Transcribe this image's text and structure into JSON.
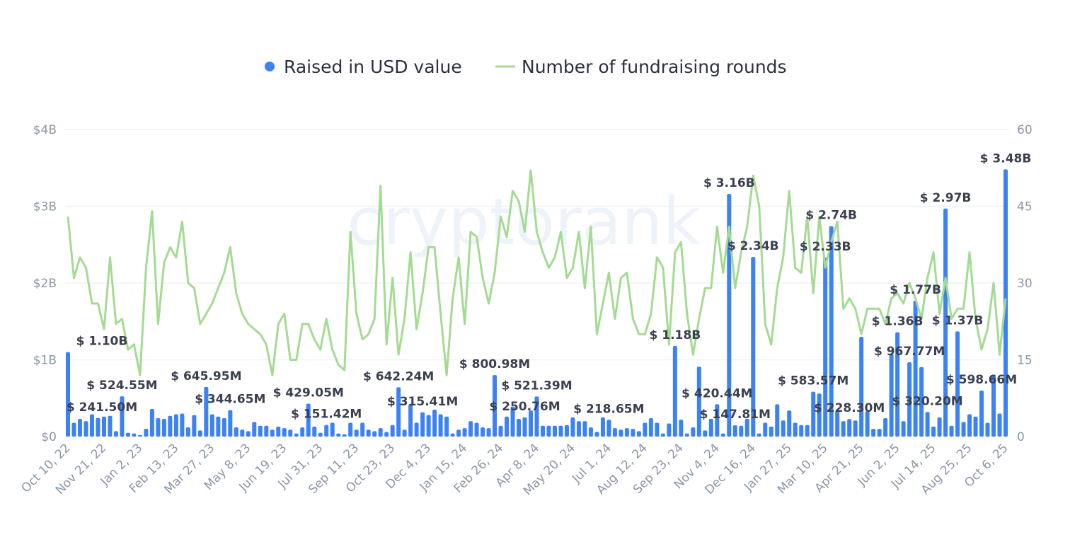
{
  "chart_data": {
    "type": "bar+line",
    "watermark": "cryptorank",
    "legend": {
      "placement": "top",
      "items": [
        {
          "name": "Raised in USD value",
          "color": "#3b82f6",
          "marker": "dot"
        },
        {
          "name": "Number of fundraising rounds",
          "color": "#a4db92",
          "marker": "line"
        }
      ]
    },
    "x_tick_labels": [
      "Oct 10, 22",
      "Nov 21, 22",
      "Jan 2, 23",
      "Feb 13, 23",
      "Mar 27, 23",
      "May 8, 23",
      "Jun 19, 23",
      "Jul 31, 23",
      "Sep 11, 23",
      "Oct 23, 23",
      "Dec 4, 23",
      "Jan 15, 24",
      "Feb 26, 24",
      "Apr 8, 24",
      "May 20, 24",
      "Jul 1, 24",
      "Aug 12, 24",
      "Sep 23, 24",
      "Nov 4, 24",
      "Dec 16, 24",
      "Jan 27, 25",
      "Mar 10, 25",
      "Apr 21, 25",
      "Jun 2, 25",
      "Jul 14, 25",
      "Aug 25, 25",
      "Oct 6, 25"
    ],
    "x_tick_every_weeks": 6,
    "y_left": {
      "ticks": [
        "$0",
        "$1B",
        "$2B",
        "$3B",
        "$4B"
      ],
      "range_musd": [
        0,
        4000
      ]
    },
    "y_right": {
      "ticks": [
        "0",
        "15",
        "30",
        "45",
        "60"
      ],
      "range": [
        0,
        60
      ]
    },
    "grid": true,
    "series": [
      {
        "name": "Raised in USD value",
        "type": "bar",
        "unit": "million USD",
        "values": [
          1100,
          180,
          230,
          200,
          290,
          241.5,
          260,
          270,
          70,
          524.55,
          50,
          40,
          20,
          100,
          360,
          240,
          230,
          270,
          290,
          300,
          120,
          280,
          80,
          645.95,
          290,
          260,
          240,
          344.65,
          120,
          90,
          70,
          190,
          140,
          140,
          90,
          130,
          110,
          90,
          40,
          120,
          429.05,
          130,
          50,
          151.42,
          180,
          40,
          30,
          180,
          90,
          180,
          90,
          70,
          110,
          60,
          150,
          642.24,
          90,
          420,
          180,
          315.41,
          280,
          350,
          290,
          260,
          40,
          90,
          110,
          200,
          180,
          120,
          110,
          800.98,
          140,
          260,
          390,
          230,
          250.76,
          340,
          521.39,
          140,
          140,
          140,
          140,
          150,
          250,
          200,
          200,
          120,
          60,
          250,
          218.65,
          110,
          90,
          110,
          100,
          70,
          180,
          240,
          180,
          40,
          170,
          1180,
          220,
          40,
          120,
          910,
          80,
          230,
          420.44,
          40,
          3160,
          147.81,
          140,
          230,
          2340,
          40,
          180,
          130,
          420,
          210,
          340,
          180,
          150,
          150,
          583.57,
          560,
          2330,
          2740,
          340,
          200,
          228.3,
          210,
          1300,
          330,
          100,
          100,
          240,
          1080,
          1360,
          200,
          967.77,
          1770,
          905,
          320.2,
          130,
          250,
          2970,
          140,
          1370,
          190,
          290,
          260,
          598.66,
          180,
          790,
          300,
          3480
        ]
      },
      {
        "name": "Number of fundraising rounds",
        "type": "line",
        "axis": "right",
        "values": [
          43,
          31,
          35,
          33,
          26,
          26,
          21,
          35,
          22,
          23,
          17,
          18,
          12,
          33,
          44,
          22,
          34,
          37,
          35,
          42,
          30,
          29,
          22,
          24,
          26,
          29,
          32,
          37,
          28,
          24,
          22,
          21,
          20,
          18,
          12,
          22,
          24,
          15,
          15,
          22,
          22,
          19,
          17,
          23,
          17,
          14,
          13,
          40,
          24,
          19,
          20,
          23,
          49,
          18,
          31,
          16,
          23,
          36,
          21,
          28,
          37,
          37,
          24,
          12,
          27,
          35,
          22,
          40,
          39,
          31,
          26,
          32,
          43,
          39,
          48,
          46,
          40,
          52,
          40,
          36,
          33,
          35,
          40,
          31,
          33,
          40,
          29,
          41,
          20,
          26,
          32,
          23,
          31,
          32,
          23,
          20,
          20,
          24,
          35,
          33,
          18,
          36,
          38,
          24,
          16,
          23,
          29,
          29,
          41,
          32,
          41,
          29,
          36,
          41,
          51,
          45,
          22,
          18,
          29,
          35,
          48,
          33,
          32,
          43,
          28,
          43,
          33,
          38,
          42,
          25,
          27,
          25,
          20,
          25,
          25,
          25,
          22,
          27,
          28,
          26,
          30,
          27,
          23,
          31,
          36,
          24,
          31,
          23,
          25,
          25,
          36,
          23,
          17,
          21,
          30,
          16,
          27
        ]
      }
    ],
    "data_labels": [
      {
        "index": 0,
        "text": "$ 1.10B"
      },
      {
        "index": 5,
        "text": "$ 241.50M"
      },
      {
        "index": 9,
        "text": "$ 524.55M"
      },
      {
        "index": 23,
        "text": "$ 645.95M"
      },
      {
        "index": 27,
        "text": "$ 344.65M"
      },
      {
        "index": 40,
        "text": "$ 429.05M"
      },
      {
        "index": 43,
        "text": "$ 151.42M"
      },
      {
        "index": 55,
        "text": "$ 642.24M"
      },
      {
        "index": 59,
        "text": "$ 315.41M"
      },
      {
        "index": 71,
        "text": "$ 800.98M"
      },
      {
        "index": 76,
        "text": "$ 250.76M"
      },
      {
        "index": 78,
        "text": "$ 521.39M"
      },
      {
        "index": 90,
        "text": "$ 218.65M"
      },
      {
        "index": 101,
        "text": "$ 1.18B"
      },
      {
        "index": 108,
        "text": "$ 420.44M"
      },
      {
        "index": 110,
        "text": "$ 3.16B"
      },
      {
        "index": 111,
        "text": "$ 147.81M"
      },
      {
        "index": 114,
        "text": "$ 2.34B"
      },
      {
        "index": 124,
        "text": "$ 583.57M"
      },
      {
        "index": 126,
        "text": "$ 2.33B"
      },
      {
        "index": 127,
        "text": "$ 2.74B"
      },
      {
        "index": 130,
        "text": "$ 228.30M"
      },
      {
        "index": 138,
        "text": "$ 1.36B"
      },
      {
        "index": 140,
        "text": "$ 967.77M"
      },
      {
        "index": 141,
        "text": "$ 1.77B"
      },
      {
        "index": 143,
        "text": "$ 320.20M"
      },
      {
        "index": 146,
        "text": "$ 2.97B"
      },
      {
        "index": 148,
        "text": "$ 1.37B"
      },
      {
        "index": 152,
        "text": "$ 598.66M"
      },
      {
        "index": 156,
        "text": "$ 3.48B"
      }
    ]
  }
}
